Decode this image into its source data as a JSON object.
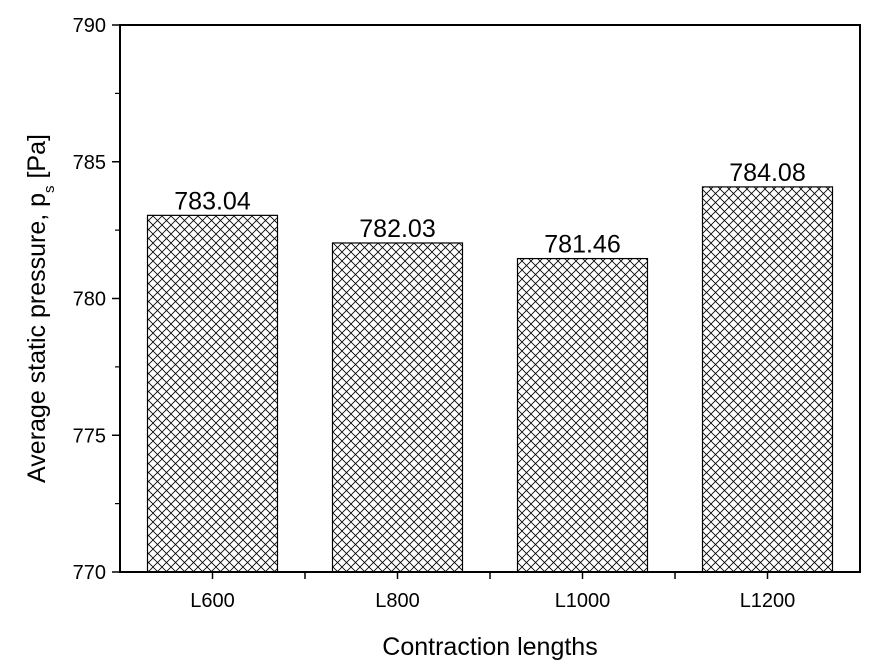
{
  "chart_data": {
    "type": "bar",
    "categories": [
      "L600",
      "L800",
      "L1000",
      "L1200"
    ],
    "values": [
      783.04,
      782.03,
      781.46,
      784.08
    ],
    "data_labels": [
      "783.04",
      "782.03",
      "781.46",
      "784.08"
    ],
    "xlabel": "Contraction lengths",
    "ylabel": "Average static pressure, p",
    "ylabel_subscript": "s",
    "ylabel_unit": " [Pa]",
    "ylim": [
      770,
      790
    ],
    "yticks": [
      770,
      775,
      780,
      785,
      790
    ],
    "ytick_labels": [
      "770",
      "775",
      "780",
      "785",
      "790"
    ],
    "grid": false,
    "legend": "none",
    "bar_fill": "crosshatch",
    "colors": {
      "bar_stroke": "#000000",
      "hatch": "#000000",
      "background": "#ffffff"
    }
  }
}
